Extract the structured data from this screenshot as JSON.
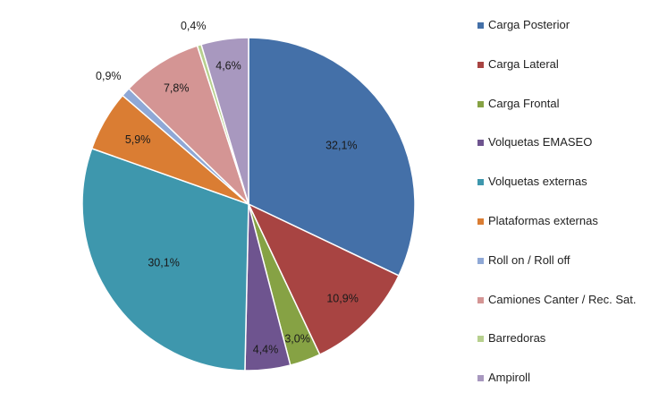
{
  "chart_data": {
    "type": "pie",
    "start_angle_deg": -90,
    "direction": "clockwise",
    "slices": [
      {
        "name": "Carga Posterior",
        "value": 32.1,
        "label": "32,1%",
        "color": "#4470A8"
      },
      {
        "name": "Carga Lateral",
        "value": 10.9,
        "label": "10,9%",
        "color": "#A84442"
      },
      {
        "name": "Carga Frontal",
        "value": 3.0,
        "label": "3,0%",
        "color": "#86A244"
      },
      {
        "name": "Volquetas EMASEO",
        "value": 4.4,
        "label": "4,4%",
        "color": "#6E548F"
      },
      {
        "name": "Volquetas externas",
        "value": 30.1,
        "label": "30,1%",
        "color": "#3E97AD"
      },
      {
        "name": "Plataformas externas",
        "value": 5.9,
        "label": "5,9%",
        "color": "#DA7D33"
      },
      {
        "name": "Roll on / Roll off",
        "value": 0.9,
        "label": "0,9%",
        "color": "#8FA8D6"
      },
      {
        "name": "Camiones Canter / Rec. Sat.",
        "value": 7.8,
        "label": "7,8%",
        "color": "#D49594"
      },
      {
        "name": "Barredoras",
        "value": 0.4,
        "label": "0,4%",
        "color": "#B7D08E"
      },
      {
        "name": "Ampiroll",
        "value": 4.6,
        "label": "4,6%",
        "color": "#A898BF"
      }
    ],
    "legend_position": "right"
  }
}
